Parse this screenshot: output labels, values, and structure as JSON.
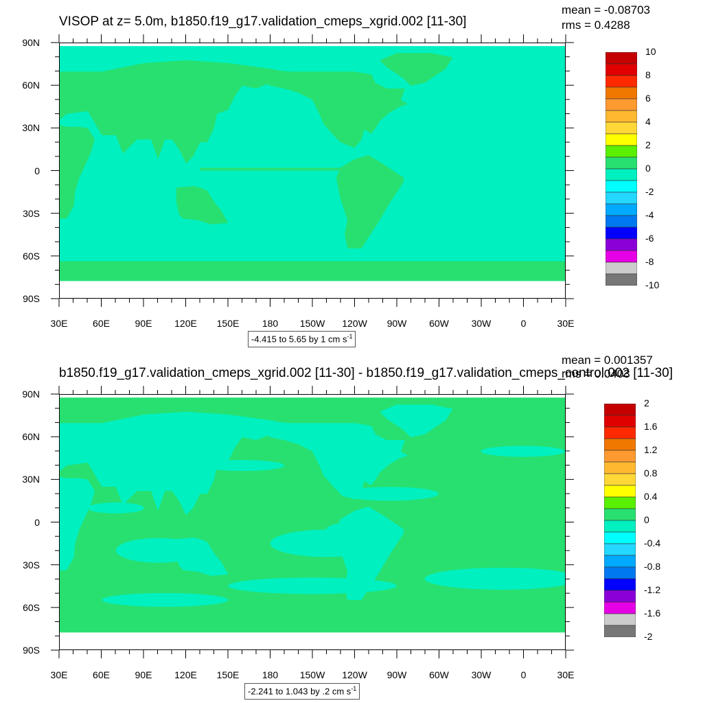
{
  "chart_data": [
    {
      "type": "heatmap",
      "title": "VISOP at z=   5.0m, b1850.f19_g17.validation_cmeps_xgrid.002 [11-30]",
      "stats": {
        "mean": "mean = -0.08703",
        "rms": "rms = 0.4288"
      },
      "x_ticks": [
        "30E",
        "60E",
        "90E",
        "120E",
        "150E",
        "180",
        "150W",
        "120W",
        "90W",
        "60W",
        "30W",
        "0",
        "30E"
      ],
      "y_ticks": [
        "90N",
        "60N",
        "30N",
        "0",
        "30S",
        "60S",
        "90S"
      ],
      "range_note": "-4.415 to 5.65 by 1 cm s",
      "range_unit_exp": "-1",
      "colorbar": {
        "labels": [
          "10",
          "8",
          "6",
          "4",
          "2",
          "0",
          "-2",
          "-4",
          "-6",
          "-8",
          "-10"
        ],
        "colors": [
          "#c40000",
          "#e00000",
          "#ff2a00",
          "#f07800",
          "#ff9a30",
          "#ffb830",
          "#ffd838",
          "#ffff00",
          "#5af000",
          "#28e070",
          "#00f0c0",
          "#00ffff",
          "#24d8ff",
          "#00aaff",
          "#0078f0",
          "#0000ff",
          "#8c00d8",
          "#e600e6",
          "#cccccc",
          "#777777"
        ]
      },
      "background_value_color": "#00f0c0",
      "land_color": "#28e070"
    },
    {
      "type": "heatmap",
      "title": "b1850.f19_g17.validation_cmeps_xgrid.002 [11-30] - b1850.f19_g17.validation_cmeps_control.002 [11-30]",
      "stats": {
        "mean": "mean = 0.001357",
        "rms": "rms = 0.0403"
      },
      "x_ticks": [
        "30E",
        "60E",
        "90E",
        "120E",
        "150E",
        "180",
        "150W",
        "120W",
        "90W",
        "60W",
        "30W",
        "0",
        "30E"
      ],
      "y_ticks": [
        "90N",
        "60N",
        "30N",
        "0",
        "30S",
        "60S",
        "90S"
      ],
      "range_note": "-2.241 to 1.043 by .2 cm s",
      "range_unit_exp": "-1",
      "colorbar": {
        "labels": [
          "2",
          "1.6",
          "1.2",
          "0.8",
          "0.4",
          "0",
          "-0.4",
          "-0.8",
          "-1.2",
          "-1.6",
          "-2"
        ],
        "colors": [
          "#c40000",
          "#e00000",
          "#ff2a00",
          "#f07800",
          "#ff9a30",
          "#ffb830",
          "#ffd838",
          "#ffff00",
          "#5af000",
          "#28e070",
          "#00f0c0",
          "#00ffff",
          "#24d8ff",
          "#00aaff",
          "#0078f0",
          "#0000ff",
          "#8c00d8",
          "#e600e6",
          "#cccccc",
          "#777777"
        ]
      },
      "background_value_color": "#28e070",
      "land_color": "#00f0c0"
    }
  ]
}
